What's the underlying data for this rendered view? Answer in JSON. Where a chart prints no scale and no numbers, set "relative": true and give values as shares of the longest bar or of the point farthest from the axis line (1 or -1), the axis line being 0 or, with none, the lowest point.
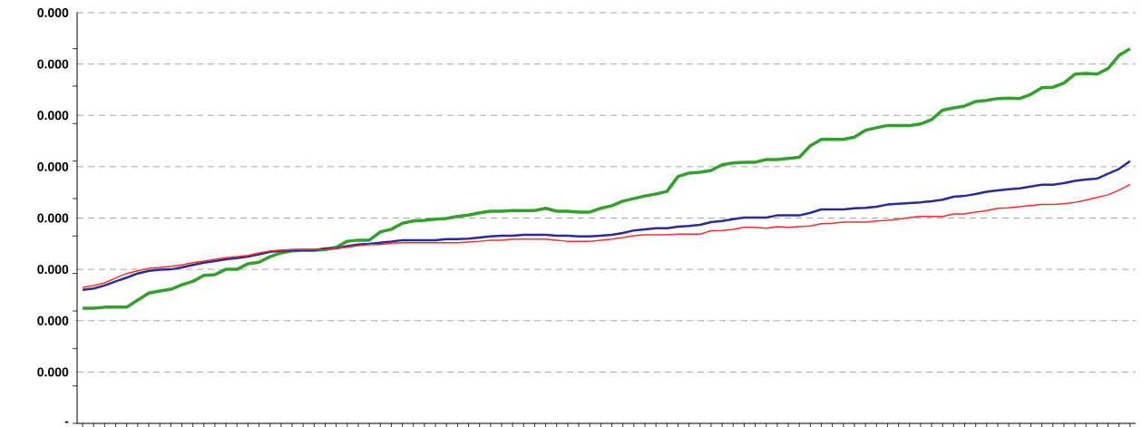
{
  "chart_data": {
    "type": "line",
    "relative": true,
    "categories": [
      null,
      null,
      null,
      null,
      null,
      null,
      null,
      null,
      null,
      null,
      null,
      null,
      null,
      null,
      null,
      null,
      null,
      null,
      null,
      null,
      null,
      null,
      null,
      null,
      null,
      null,
      null,
      null,
      null,
      null,
      null,
      null,
      null,
      null,
      null,
      null,
      null,
      null,
      null,
      null,
      null,
      null,
      null,
      null,
      null,
      null,
      null,
      null,
      null,
      null,
      null,
      null,
      null,
      null,
      null,
      null,
      null,
      null,
      null,
      null,
      null,
      null,
      null,
      null,
      null,
      null,
      null,
      null,
      null,
      null,
      null,
      null,
      null,
      null,
      null,
      null,
      null,
      null,
      null,
      null,
      null,
      null,
      null,
      null,
      null,
      null,
      null,
      null,
      null,
      null,
      null,
      null,
      null,
      null,
      null,
      null
    ],
    "series": [
      {
        "color": "#33a02c",
        "values": [
          0.307,
          0.307,
          0.31,
          0.31,
          0.31,
          0.329,
          0.348,
          0.353,
          0.358,
          0.37,
          0.379,
          0.395,
          0.397,
          0.411,
          0.411,
          0.426,
          0.43,
          0.445,
          0.455,
          0.46,
          0.462,
          0.462,
          0.464,
          0.47,
          0.486,
          0.489,
          0.489,
          0.511,
          0.518,
          0.534,
          0.54,
          0.542,
          0.545,
          0.547,
          0.552,
          0.556,
          0.562,
          0.566,
          0.566,
          0.568,
          0.568,
          0.568,
          0.574,
          0.566,
          0.566,
          0.564,
          0.564,
          0.574,
          0.581,
          0.593,
          0.6,
          0.607,
          0.612,
          0.619,
          0.659,
          0.668,
          0.67,
          0.675,
          0.69,
          0.695,
          0.697,
          0.697,
          0.704,
          0.704,
          0.707,
          0.71,
          0.741,
          0.758,
          0.758,
          0.758,
          0.764,
          0.782,
          0.789,
          0.795,
          0.795,
          0.795,
          0.799,
          0.811,
          0.836,
          0.842,
          0.847,
          0.859,
          0.862,
          0.867,
          0.868,
          0.867,
          0.878,
          0.896,
          0.897,
          0.908,
          0.932,
          0.934,
          0.932,
          0.947,
          0.982,
          1
        ]
      },
      {
        "color": "#2a2a9a",
        "values": [
          0.356,
          0.36,
          0.368,
          0.379,
          0.389,
          0.4,
          0.407,
          0.41,
          0.411,
          0.416,
          0.423,
          0.429,
          0.433,
          0.438,
          0.441,
          0.445,
          0.451,
          0.458,
          0.46,
          0.462,
          0.462,
          0.462,
          0.467,
          0.467,
          0.473,
          0.477,
          0.479,
          0.482,
          0.485,
          0.489,
          0.489,
          0.489,
          0.489,
          0.492,
          0.492,
          0.493,
          0.496,
          0.499,
          0.501,
          0.501,
          0.503,
          0.503,
          0.503,
          0.501,
          0.501,
          0.499,
          0.499,
          0.501,
          0.503,
          0.508,
          0.515,
          0.518,
          0.521,
          0.521,
          0.525,
          0.527,
          0.53,
          0.537,
          0.54,
          0.545,
          0.549,
          0.549,
          0.549,
          0.555,
          0.555,
          0.555,
          0.562,
          0.571,
          0.571,
          0.571,
          0.574,
          0.575,
          0.578,
          0.584,
          0.586,
          0.588,
          0.59,
          0.593,
          0.597,
          0.605,
          0.607,
          0.612,
          0.618,
          0.622,
          0.625,
          0.627,
          0.632,
          0.637,
          0.637,
          0.641,
          0.647,
          0.651,
          0.653,
          0.666,
          0.679,
          0.7
        ]
      },
      {
        "color": "#ff2a2a",
        "values": [
          0.363,
          0.368,
          0.375,
          0.388,
          0.4,
          0.407,
          0.414,
          0.416,
          0.419,
          0.423,
          0.429,
          0.433,
          0.438,
          0.442,
          0.445,
          0.448,
          0.455,
          0.46,
          0.462,
          0.464,
          0.464,
          0.464,
          0.464,
          0.467,
          0.47,
          0.474,
          0.477,
          0.477,
          0.481,
          0.482,
          0.482,
          0.482,
          0.482,
          0.482,
          0.482,
          0.484,
          0.486,
          0.489,
          0.489,
          0.492,
          0.492,
          0.492,
          0.492,
          0.489,
          0.486,
          0.486,
          0.486,
          0.489,
          0.492,
          0.496,
          0.501,
          0.503,
          0.503,
          0.503,
          0.505,
          0.505,
          0.505,
          0.514,
          0.515,
          0.518,
          0.523,
          0.523,
          0.521,
          0.525,
          0.523,
          0.525,
          0.527,
          0.533,
          0.534,
          0.537,
          0.537,
          0.537,
          0.54,
          0.542,
          0.545,
          0.549,
          0.552,
          0.552,
          0.552,
          0.559,
          0.559,
          0.564,
          0.568,
          0.574,
          0.575,
          0.578,
          0.581,
          0.584,
          0.584,
          0.586,
          0.59,
          0.596,
          0.603,
          0.61,
          0.622,
          0.638
        ]
      }
    ],
    "annotations": [
      "-",
      "0.000",
      "0.000",
      "0.000",
      "0.000",
      "0.000",
      "0.000",
      "0.000",
      "0.000"
    ],
    "grid": "y"
  }
}
